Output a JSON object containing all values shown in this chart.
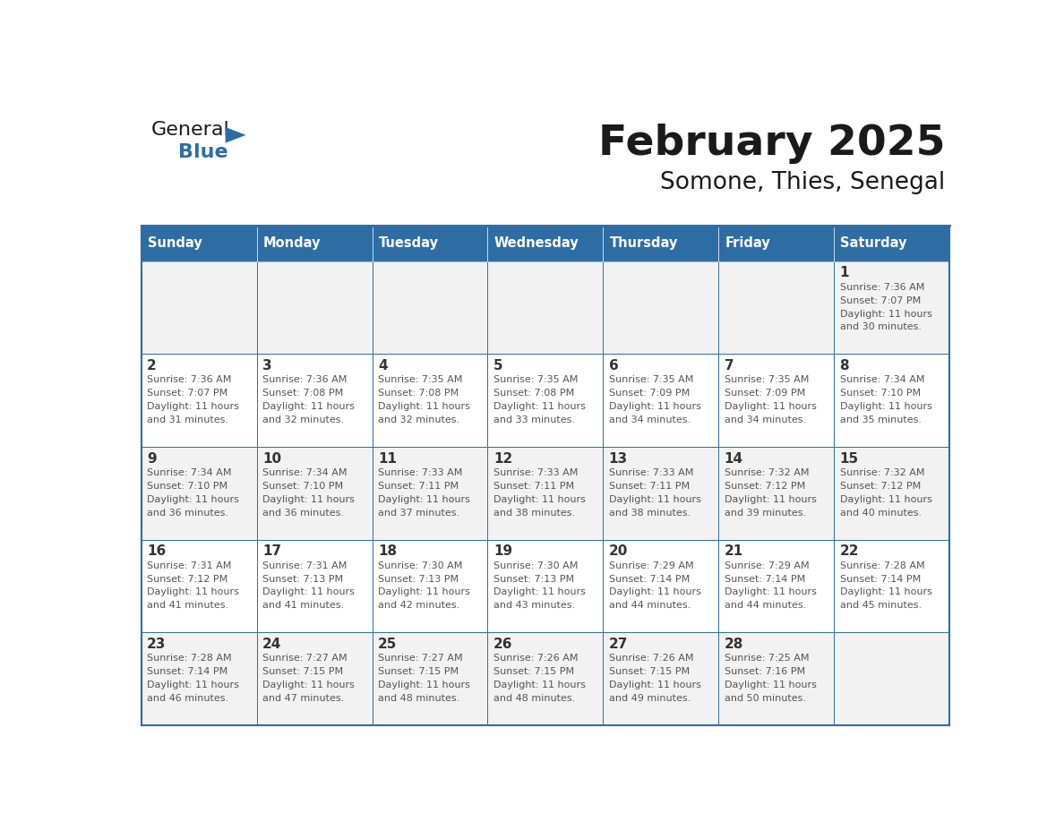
{
  "title": "February 2025",
  "subtitle": "Somone, Thies, Senegal",
  "header_color": "#2E6DA4",
  "header_text_color": "#FFFFFF",
  "border_color": "#2E6DA4",
  "text_color": "#333333",
  "day_headers": [
    "Sunday",
    "Monday",
    "Tuesday",
    "Wednesday",
    "Thursday",
    "Friday",
    "Saturday"
  ],
  "days": [
    {
      "day": 1,
      "col": 6,
      "row": 0,
      "sunrise": "7:36 AM",
      "sunset": "7:07 PM",
      "daylight_mins": "30"
    },
    {
      "day": 2,
      "col": 0,
      "row": 1,
      "sunrise": "7:36 AM",
      "sunset": "7:07 PM",
      "daylight_mins": "31"
    },
    {
      "day": 3,
      "col": 1,
      "row": 1,
      "sunrise": "7:36 AM",
      "sunset": "7:08 PM",
      "daylight_mins": "32"
    },
    {
      "day": 4,
      "col": 2,
      "row": 1,
      "sunrise": "7:35 AM",
      "sunset": "7:08 PM",
      "daylight_mins": "32"
    },
    {
      "day": 5,
      "col": 3,
      "row": 1,
      "sunrise": "7:35 AM",
      "sunset": "7:08 PM",
      "daylight_mins": "33"
    },
    {
      "day": 6,
      "col": 4,
      "row": 1,
      "sunrise": "7:35 AM",
      "sunset": "7:09 PM",
      "daylight_mins": "34"
    },
    {
      "day": 7,
      "col": 5,
      "row": 1,
      "sunrise": "7:35 AM",
      "sunset": "7:09 PM",
      "daylight_mins": "34"
    },
    {
      "day": 8,
      "col": 6,
      "row": 1,
      "sunrise": "7:34 AM",
      "sunset": "7:10 PM",
      "daylight_mins": "35"
    },
    {
      "day": 9,
      "col": 0,
      "row": 2,
      "sunrise": "7:34 AM",
      "sunset": "7:10 PM",
      "daylight_mins": "36"
    },
    {
      "day": 10,
      "col": 1,
      "row": 2,
      "sunrise": "7:34 AM",
      "sunset": "7:10 PM",
      "daylight_mins": "36"
    },
    {
      "day": 11,
      "col": 2,
      "row": 2,
      "sunrise": "7:33 AM",
      "sunset": "7:11 PM",
      "daylight_mins": "37"
    },
    {
      "day": 12,
      "col": 3,
      "row": 2,
      "sunrise": "7:33 AM",
      "sunset": "7:11 PM",
      "daylight_mins": "38"
    },
    {
      "day": 13,
      "col": 4,
      "row": 2,
      "sunrise": "7:33 AM",
      "sunset": "7:11 PM",
      "daylight_mins": "38"
    },
    {
      "day": 14,
      "col": 5,
      "row": 2,
      "sunrise": "7:32 AM",
      "sunset": "7:12 PM",
      "daylight_mins": "39"
    },
    {
      "day": 15,
      "col": 6,
      "row": 2,
      "sunrise": "7:32 AM",
      "sunset": "7:12 PM",
      "daylight_mins": "40"
    },
    {
      "day": 16,
      "col": 0,
      "row": 3,
      "sunrise": "7:31 AM",
      "sunset": "7:12 PM",
      "daylight_mins": "41"
    },
    {
      "day": 17,
      "col": 1,
      "row": 3,
      "sunrise": "7:31 AM",
      "sunset": "7:13 PM",
      "daylight_mins": "41"
    },
    {
      "day": 18,
      "col": 2,
      "row": 3,
      "sunrise": "7:30 AM",
      "sunset": "7:13 PM",
      "daylight_mins": "42"
    },
    {
      "day": 19,
      "col": 3,
      "row": 3,
      "sunrise": "7:30 AM",
      "sunset": "7:13 PM",
      "daylight_mins": "43"
    },
    {
      "day": 20,
      "col": 4,
      "row": 3,
      "sunrise": "7:29 AM",
      "sunset": "7:14 PM",
      "daylight_mins": "44"
    },
    {
      "day": 21,
      "col": 5,
      "row": 3,
      "sunrise": "7:29 AM",
      "sunset": "7:14 PM",
      "daylight_mins": "44"
    },
    {
      "day": 22,
      "col": 6,
      "row": 3,
      "sunrise": "7:28 AM",
      "sunset": "7:14 PM",
      "daylight_mins": "45"
    },
    {
      "day": 23,
      "col": 0,
      "row": 4,
      "sunrise": "7:28 AM",
      "sunset": "7:14 PM",
      "daylight_mins": "46"
    },
    {
      "day": 24,
      "col": 1,
      "row": 4,
      "sunrise": "7:27 AM",
      "sunset": "7:15 PM",
      "daylight_mins": "47"
    },
    {
      "day": 25,
      "col": 2,
      "row": 4,
      "sunrise": "7:27 AM",
      "sunset": "7:15 PM",
      "daylight_mins": "48"
    },
    {
      "day": 26,
      "col": 3,
      "row": 4,
      "sunrise": "7:26 AM",
      "sunset": "7:15 PM",
      "daylight_mins": "48"
    },
    {
      "day": 27,
      "col": 4,
      "row": 4,
      "sunrise": "7:26 AM",
      "sunset": "7:15 PM",
      "daylight_mins": "49"
    },
    {
      "day": 28,
      "col": 5,
      "row": 4,
      "sunrise": "7:25 AM",
      "sunset": "7:16 PM",
      "daylight_mins": "50"
    }
  ],
  "num_rows": 5,
  "logo_triangle_color": "#2E6DA4"
}
